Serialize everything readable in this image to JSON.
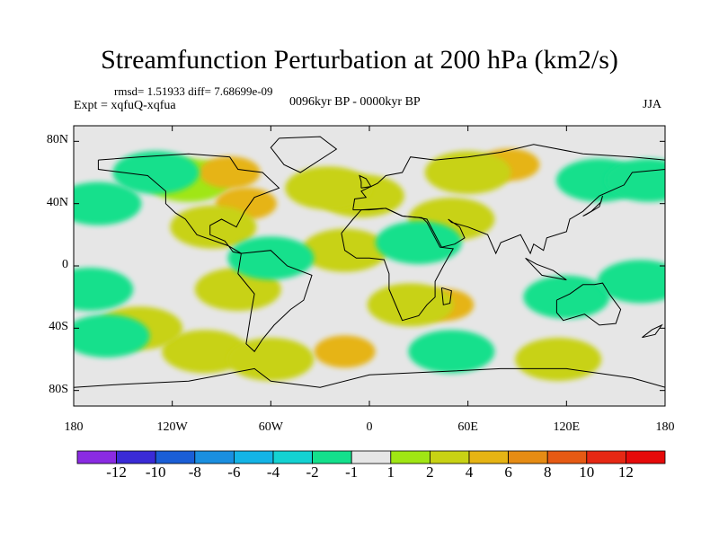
{
  "chart_data": {
    "type": "heatmap",
    "title": "Streamfunction Perturbation at 200 hPa (km2/s)",
    "stats_line": "rmsd= 1.51933 diff= 7.68699e-09",
    "experiment": "Expt = xqfuQ-xqfua",
    "period": "0096kyr BP - 0000kyr BP",
    "season": "JJA",
    "x_ticks": [
      "180",
      "120W",
      "60W",
      "0",
      "60E",
      "120E",
      "180"
    ],
    "y_ticks": [
      "80N",
      "40N",
      "0",
      "40S",
      "80S"
    ],
    "colorbar": {
      "labels": [
        "-12",
        "-10",
        "-8",
        "-6",
        "-4",
        "-2",
        "-1",
        "1",
        "2",
        "4",
        "6",
        "8",
        "10",
        "12"
      ],
      "colors": [
        "#8a2be2",
        "#3a2bd6",
        "#1a5ed6",
        "#1a8fe0",
        "#14b4e6",
        "#14d2d2",
        "#14e08c",
        "#e6e6e6",
        "#a0e614",
        "#c8d214",
        "#e6b414",
        "#e68c14",
        "#e65a14",
        "#e62814",
        "#e60a0a"
      ]
    },
    "anomaly_regions": [
      {
        "lon": -110,
        "lat": 55,
        "level": "1"
      },
      {
        "lon": -85,
        "lat": 60,
        "level": "4"
      },
      {
        "lon": -75,
        "lat": 40,
        "level": "4"
      },
      {
        "lon": -95,
        "lat": 25,
        "level": "2"
      },
      {
        "lon": 85,
        "lat": 65,
        "level": "4"
      },
      {
        "lon": 60,
        "lat": 60,
        "level": "2"
      },
      {
        "lon": 50,
        "lat": 30,
        "level": "2"
      },
      {
        "lon": -5,
        "lat": 45,
        "level": "2"
      },
      {
        "lon": -25,
        "lat": 50,
        "level": "2"
      },
      {
        "lon": -15,
        "lat": 10,
        "level": "2"
      },
      {
        "lon": 45,
        "lat": -25,
        "level": "4"
      },
      {
        "lon": 25,
        "lat": -25,
        "level": "2"
      },
      {
        "lon": -80,
        "lat": -15,
        "level": "2"
      },
      {
        "lon": -15,
        "lat": -55,
        "level": "4"
      },
      {
        "lon": -100,
        "lat": -55,
        "level": "2"
      },
      {
        "lon": -60,
        "lat": -60,
        "level": "2"
      },
      {
        "lon": -140,
        "lat": -40,
        "level": "2"
      },
      {
        "lon": 115,
        "lat": -60,
        "level": "2"
      },
      {
        "lon": -130,
        "lat": 60,
        "level": "-1"
      },
      {
        "lon": 140,
        "lat": 55,
        "level": "-1"
      },
      {
        "lon": 30,
        "lat": 15,
        "level": "-1"
      },
      {
        "lon": -170,
        "lat": -15,
        "level": "-1"
      },
      {
        "lon": -160,
        "lat": -45,
        "level": "-1"
      },
      {
        "lon": 120,
        "lat": -20,
        "level": "-1"
      },
      {
        "lon": 165,
        "lat": -10,
        "level": "-1"
      },
      {
        "lon": 50,
        "lat": -55,
        "level": "-1"
      },
      {
        "lon": -60,
        "lat": 5,
        "level": "-1"
      },
      {
        "lon": -165,
        "lat": 40,
        "level": "-1"
      },
      {
        "lon": 170,
        "lat": 55,
        "level": "-1"
      }
    ]
  }
}
